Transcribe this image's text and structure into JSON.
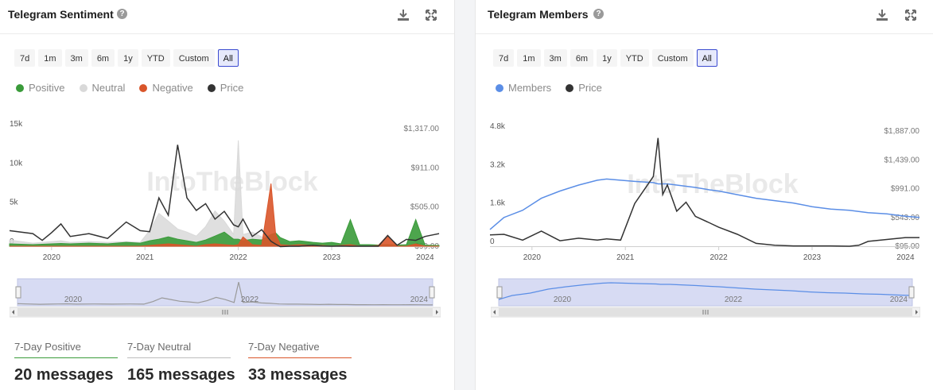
{
  "colors": {
    "positive": "#3a9b3a",
    "neutral": "#d9d9d9",
    "negative": "#d9552a",
    "price": "#333333",
    "members": "#5b8ee6",
    "active_range_border": "#3b4bd0",
    "navigator_fill": "#d7dbf3"
  },
  "watermark": "IntoTheBlock",
  "left": {
    "title": "Telegram Sentiment",
    "help_icon": "?",
    "download_icon": "download-icon",
    "expand_icon": "expand-icon",
    "ranges": [
      "7d",
      "1m",
      "3m",
      "6m",
      "1y",
      "YTD",
      "Custom",
      "All"
    ],
    "active_range": "All",
    "legend": [
      "Positive",
      "Neutral",
      "Negative",
      "Price"
    ],
    "nav_labels": [
      "2020",
      "2022",
      "2024"
    ],
    "stats": [
      {
        "label": "7-Day Positive",
        "value": "20 messages",
        "color": "#3a9b3a"
      },
      {
        "label": "7-Day Neutral",
        "value": "165 messages",
        "color": "#bdbdbd"
      },
      {
        "label": "7-Day Negative",
        "value": "33 messages",
        "color": "#d9552a"
      }
    ]
  },
  "right": {
    "title": "Telegram Members",
    "help_icon": "?",
    "download_icon": "download-icon",
    "expand_icon": "expand-icon",
    "ranges": [
      "7d",
      "1m",
      "3m",
      "6m",
      "1y",
      "YTD",
      "Custom",
      "All"
    ],
    "active_range": "All",
    "legend": [
      "Members",
      "Price"
    ],
    "nav_labels": [
      "2020",
      "2022",
      "2024"
    ]
  },
  "chart_data": [
    {
      "type": "area",
      "title": "Telegram Sentiment",
      "x_ticks": [
        "2020",
        "2021",
        "2022",
        "2023",
        "2024"
      ],
      "y_left_ticks": [
        "0",
        "5k",
        "10k",
        "15k"
      ],
      "y_left_range": [
        0,
        15000
      ],
      "y_right_ticks": [
        "$99.00",
        "$505.00",
        "$911.00",
        "$1,317.00"
      ],
      "y_right_range": [
        99,
        1317
      ],
      "x": [
        2019.55,
        2019.8,
        2019.9,
        2020.0,
        2020.1,
        2020.2,
        2020.4,
        2020.6,
        2020.8,
        2020.95,
        2021.05,
        2021.15,
        2021.25,
        2021.35,
        2021.45,
        2021.55,
        2021.65,
        2021.75,
        2021.85,
        2021.95,
        2022.0,
        2022.05,
        2022.15,
        2022.25,
        2022.35,
        2022.4,
        2022.45,
        2022.55,
        2022.65,
        2022.8,
        2022.9,
        2023.0,
        2023.1,
        2023.2,
        2023.3,
        2023.4,
        2023.5,
        2023.6,
        2023.7,
        2023.8,
        2023.9,
        2024.0,
        2024.1,
        2024.15
      ],
      "series": [
        {
          "name": "Positive",
          "values": [
            300,
            200,
            250,
            300,
            350,
            300,
            400,
            300,
            500,
            400,
            700,
            900,
            1200,
            900,
            700,
            500,
            800,
            1300,
            1800,
            900,
            900,
            700,
            900,
            800,
            1500,
            1700,
            1100,
            600,
            700,
            500,
            400,
            500,
            300,
            3400,
            200,
            200,
            150,
            200,
            150,
            200,
            3400,
            150,
            100,
            100
          ]
        },
        {
          "name": "Neutral",
          "values": [
            800,
            400,
            500,
            600,
            700,
            500,
            600,
            500,
            600,
            500,
            2000,
            4200,
            3200,
            2200,
            1800,
            1300,
            2500,
            4500,
            3200,
            1500,
            13500,
            1500,
            1800,
            1200,
            1000,
            800,
            600,
            500,
            500,
            400,
            300,
            400,
            300,
            300,
            200,
            200,
            150,
            200,
            150,
            150,
            200,
            150,
            100,
            100
          ]
        },
        {
          "name": "Negative",
          "values": [
            0,
            0,
            0,
            0,
            0,
            0,
            0,
            0,
            0,
            0,
            100,
            200,
            300,
            200,
            100,
            0,
            200,
            300,
            200,
            100,
            200,
            1200,
            200,
            100,
            8000,
            1500,
            200,
            100,
            200,
            100,
            100,
            0,
            100,
            200,
            0,
            0,
            100,
            1400,
            0,
            0,
            300,
            0,
            0,
            0
          ]
        },
        {
          "name": "Price",
          "values": [
            260,
            230,
            160,
            240,
            330,
            200,
            230,
            180,
            350,
            260,
            250,
            600,
            420,
            1150,
            600,
            470,
            540,
            380,
            460,
            320,
            300,
            380,
            200,
            270,
            150,
            120,
            95,
            99,
            99,
            110,
            101,
            99,
            101,
            99,
            99,
            99,
            99,
            210,
            110,
            170,
            160,
            200,
            220,
            230
          ]
        }
      ]
    },
    {
      "type": "line",
      "title": "Telegram Members",
      "x_ticks": [
        "2020",
        "2021",
        "2022",
        "2023",
        "2024"
      ],
      "y_left_ticks": [
        "0",
        "1.6k",
        "3.2k",
        "4.8k"
      ],
      "y_left_range": [
        0,
        4800
      ],
      "y_right_ticks": [
        "$95.00",
        "$543.00",
        "$991.00",
        "$1,439.00",
        "$1,887.00"
      ],
      "y_right_range": [
        95,
        1887
      ],
      "x": [
        2019.55,
        2019.7,
        2019.9,
        2020.1,
        2020.3,
        2020.5,
        2020.7,
        2020.8,
        2020.95,
        2021.1,
        2021.3,
        2021.35,
        2021.4,
        2021.45,
        2021.55,
        2021.65,
        2021.75,
        2021.9,
        2022.0,
        2022.2,
        2022.4,
        2022.6,
        2022.8,
        2023.0,
        2023.2,
        2023.4,
        2023.5,
        2023.6,
        2023.8,
        2024.0,
        2024.15
      ],
      "series": [
        {
          "name": "Members",
          "values": [
            700,
            1200,
            1500,
            2000,
            2300,
            2550,
            2750,
            2800,
            2750,
            2700,
            2650,
            2600,
            2600,
            2600,
            2550,
            2500,
            2450,
            2350,
            2300,
            2150,
            2000,
            1900,
            1800,
            1650,
            1550,
            1500,
            1450,
            1400,
            1350,
            1250,
            1200
          ]
        },
        {
          "name": "Price",
          "values": [
            270,
            280,
            190,
            330,
            180,
            220,
            190,
            210,
            190,
            760,
            1180,
            1780,
            900,
            1050,
            640,
            780,
            560,
            460,
            390,
            280,
            140,
            110,
            100,
            100,
            100,
            95,
            110,
            170,
            200,
            230,
            230
          ]
        }
      ]
    }
  ]
}
